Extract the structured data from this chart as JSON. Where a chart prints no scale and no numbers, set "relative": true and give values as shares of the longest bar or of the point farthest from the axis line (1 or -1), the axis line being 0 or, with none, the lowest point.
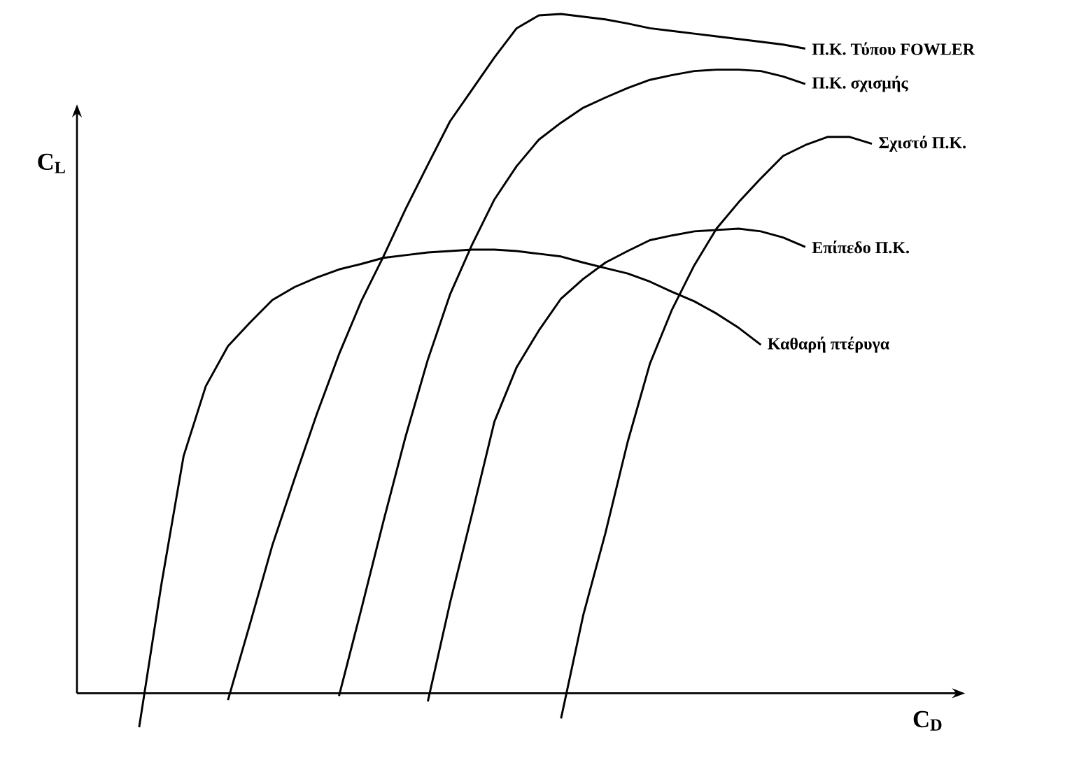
{
  "chart_data": {
    "type": "line",
    "relative": true,
    "xlabel": "C$_{D}$",
    "ylabel": "C$_{L}$",
    "line_style": "solid",
    "categories": [
      null,
      null,
      null,
      null,
      null,
      null,
      null,
      null,
      null,
      null,
      null,
      null,
      null,
      null,
      null,
      null,
      null,
      null,
      null,
      null,
      null,
      null,
      null,
      null,
      null,
      null,
      null,
      null,
      null,
      null,
      null,
      null,
      null,
      null
    ],
    "series": [
      {
        "name": "Π.Κ. Τύπου FOWLER",
        "color": "#000000",
        "values": [
          null,
          null,
          null,
          null,
          -0.01,
          0.103,
          0.218,
          0.316,
          0.411,
          0.499,
          0.577,
          0.643,
          0.713,
          0.778,
          0.842,
          0.889,
          0.936,
          0.979,
          0.998,
          1,
          0.996,
          0.992,
          0.986,
          0.979,
          0.975,
          0.971,
          0.967,
          0.963,
          0.959,
          0.955,
          0.949,
          null,
          null,
          null
        ]
      },
      {
        "name": "Π.Κ. σχισμής",
        "color": "#000000",
        "values": [
          null,
          null,
          null,
          null,
          null,
          null,
          null,
          null,
          null,
          -0.004,
          0.123,
          0.253,
          0.378,
          0.491,
          0.587,
          0.661,
          0.727,
          0.776,
          0.815,
          0.84,
          0.862,
          0.877,
          0.891,
          0.903,
          0.91,
          0.916,
          0.918,
          0.918,
          0.916,
          0.908,
          0.897,
          null,
          null,
          null
        ]
      },
      {
        "name": "Σχιστό Π.Κ.",
        "color": "#000000",
        "values": [
          null,
          null,
          null,
          null,
          null,
          null,
          null,
          null,
          null,
          null,
          null,
          null,
          null,
          null,
          null,
          null,
          null,
          null,
          null,
          -0.037,
          0.115,
          0.236,
          0.37,
          0.485,
          0.565,
          0.63,
          0.684,
          0.723,
          0.758,
          0.791,
          0.807,
          0.819,
          0.819,
          0.809
        ]
      },
      {
        "name": "Επίπεδο Π.Κ.",
        "color": "#000000",
        "values": [
          null,
          null,
          null,
          null,
          null,
          null,
          null,
          null,
          null,
          null,
          null,
          null,
          null,
          -0.012,
          0.133,
          0.265,
          0.4,
          0.48,
          0.534,
          0.581,
          0.61,
          0.634,
          0.651,
          0.667,
          0.674,
          0.68,
          0.682,
          0.684,
          0.68,
          0.671,
          0.657,
          null,
          null,
          null
        ]
      },
      {
        "name": "Καθαρή πτέρυγα",
        "color": "#000000",
        "values": [
          -0.05,
          0.16,
          0.349,
          0.452,
          0.511,
          0.546,
          0.579,
          0.598,
          0.612,
          0.624,
          0.632,
          0.641,
          0.645,
          0.649,
          0.651,
          0.653,
          0.653,
          0.651,
          0.647,
          0.643,
          0.634,
          0.626,
          0.618,
          0.606,
          0.591,
          0.577,
          0.559,
          0.538,
          0.513,
          null,
          null,
          null,
          null,
          null
        ]
      }
    ]
  }
}
